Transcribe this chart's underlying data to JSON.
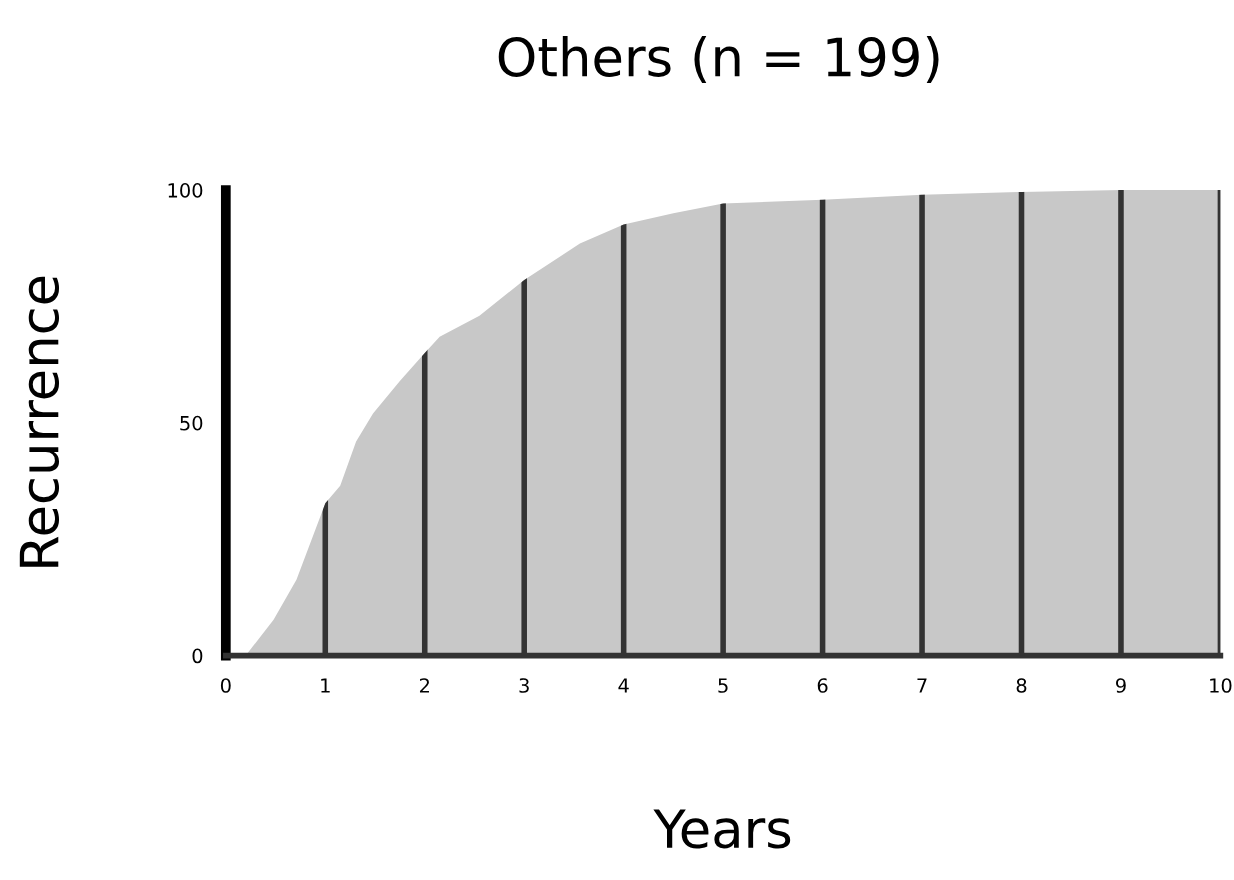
{
  "chart_data": {
    "type": "area",
    "title": "Others (n = 199)",
    "xlabel": "Years",
    "ylabel": "Recurrence",
    "x": [
      0.2,
      0.48,
      0.71,
      1,
      1.15,
      1.31,
      1.48,
      1.75,
      2,
      2.15,
      2.55,
      3,
      3.56,
      4,
      4.5,
      5,
      6,
      7,
      8,
      9,
      10
    ],
    "series": [
      {
        "color": "#c8c8c8",
        "values": [
          0,
          7.7,
          16.3,
          32.7,
          36.5,
          46,
          52,
          59,
          65,
          68.5,
          73,
          80.7,
          88.5,
          92.6,
          95,
          97.1,
          97.9,
          99,
          99.6,
          100,
          100
        ]
      }
    ],
    "xlim": [
      0,
      10
    ],
    "ylim": [
      0,
      100
    ],
    "xticks": [
      0,
      1,
      2,
      3,
      4,
      5,
      6,
      7,
      8,
      9,
      10
    ],
    "yticks": [
      0,
      50,
      100
    ],
    "grid": "x",
    "legend": false
  }
}
